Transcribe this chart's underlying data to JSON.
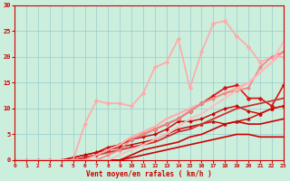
{
  "background_color": "#cceedd",
  "grid_color": "#99cccc",
  "xlabel": "Vent moyen/en rafales ( km/h )",
  "xlabel_color": "#cc0000",
  "tick_color": "#cc0000",
  "xlim": [
    0,
    23
  ],
  "ylim": [
    0,
    30
  ],
  "xticks": [
    0,
    1,
    2,
    3,
    4,
    5,
    6,
    7,
    8,
    9,
    10,
    11,
    12,
    13,
    14,
    15,
    16,
    17,
    18,
    19,
    20,
    21,
    22,
    23
  ],
  "yticks": [
    0,
    5,
    10,
    15,
    20,
    25,
    30
  ],
  "series": [
    {
      "x": [
        0,
        1,
        2,
        3,
        4,
        5,
        6,
        7,
        8,
        9,
        10,
        11,
        12,
        13,
        14,
        15,
        16,
        17,
        18,
        19,
        20,
        21,
        22,
        23
      ],
      "y": [
        0,
        0,
        0,
        0,
        0,
        0,
        0,
        0,
        0,
        0,
        0.5,
        1,
        1.5,
        2,
        2.5,
        3,
        3.5,
        4,
        4.5,
        5,
        5,
        4.5,
        4.5,
        4.5
      ],
      "color": "#cc0000",
      "marker": null,
      "markersize": 0,
      "linewidth": 1.2
    },
    {
      "x": [
        0,
        1,
        2,
        3,
        4,
        5,
        6,
        7,
        8,
        9,
        10,
        11,
        12,
        13,
        14,
        15,
        16,
        17,
        18,
        19,
        20,
        21,
        22,
        23
      ],
      "y": [
        0,
        0,
        0,
        0,
        0,
        0,
        0,
        0,
        0,
        0,
        1,
        2,
        2.5,
        3,
        3.5,
        4.5,
        5,
        6,
        7,
        7.5,
        7,
        7,
        7.5,
        8
      ],
      "color": "#cc0000",
      "marker": null,
      "markersize": 0,
      "linewidth": 1.2
    },
    {
      "x": [
        0,
        1,
        2,
        3,
        4,
        5,
        6,
        7,
        8,
        9,
        10,
        11,
        12,
        13,
        14,
        15,
        16,
        17,
        18,
        19,
        20,
        21,
        22,
        23
      ],
      "y": [
        0,
        0,
        0,
        0,
        0,
        0.5,
        1,
        1.5,
        2,
        2.5,
        3,
        3.5,
        4,
        5,
        6,
        6.5,
        7,
        7.5,
        7,
        7.5,
        8,
        9,
        10,
        10.5
      ],
      "color": "#cc0000",
      "marker": "^",
      "markersize": 2.5,
      "linewidth": 1.0
    },
    {
      "x": [
        0,
        1,
        2,
        3,
        4,
        5,
        6,
        7,
        8,
        9,
        10,
        11,
        12,
        13,
        14,
        15,
        16,
        17,
        18,
        19,
        20,
        21,
        22,
        23
      ],
      "y": [
        0,
        0,
        0,
        0,
        0,
        0.5,
        1,
        1.5,
        2.5,
        3,
        4,
        4.5,
        5,
        6,
        7.5,
        7.5,
        8,
        9,
        10,
        10.5,
        9.5,
        9,
        10,
        10.5
      ],
      "color": "#cc0000",
      "marker": "D",
      "markersize": 2.0,
      "linewidth": 1.0
    },
    {
      "x": [
        0,
        1,
        2,
        3,
        4,
        5,
        6,
        7,
        8,
        9,
        10,
        11,
        12,
        13,
        14,
        15,
        16,
        17,
        18,
        19,
        20,
        21,
        22,
        23
      ],
      "y": [
        0,
        0,
        0,
        0,
        0,
        0,
        0.5,
        1,
        2,
        3,
        4,
        5,
        6,
        7,
        8,
        9.5,
        11,
        12.5,
        14,
        14.5,
        12,
        12,
        10.5,
        14.5
      ],
      "color": "#dd1111",
      "marker": "D",
      "markersize": 2.5,
      "linewidth": 1.2
    },
    {
      "x": [
        0,
        1,
        2,
        3,
        4,
        5,
        6,
        7,
        8,
        9,
        10,
        11,
        12,
        13,
        14,
        15,
        16,
        17,
        18,
        19,
        20,
        21,
        22,
        23
      ],
      "y": [
        0,
        0,
        0,
        0,
        0,
        0,
        0.5,
        1,
        1.5,
        2,
        2.5,
        3,
        3.5,
        4.5,
        5.5,
        6,
        7,
        8,
        9,
        10,
        10.5,
        11,
        11.5,
        12
      ],
      "color": "#cc3333",
      "marker": null,
      "markersize": 0,
      "linewidth": 1.3
    },
    {
      "x": [
        0,
        1,
        2,
        3,
        4,
        5,
        6,
        7,
        8,
        9,
        10,
        11,
        12,
        13,
        14,
        15,
        16,
        17,
        18,
        19,
        20,
        21,
        22,
        23
      ],
      "y": [
        0,
        0,
        0,
        0,
        0,
        0,
        7,
        11.5,
        11,
        11,
        10.5,
        13,
        18,
        19,
        23.5,
        14,
        21,
        26.5,
        27,
        24,
        22,
        19,
        20,
        20
      ],
      "color": "#ffaaaa",
      "marker": "D",
      "markersize": 2.5,
      "linewidth": 1.2
    },
    {
      "x": [
        0,
        1,
        2,
        3,
        4,
        5,
        6,
        7,
        8,
        9,
        10,
        11,
        12,
        13,
        14,
        15,
        16,
        17,
        18,
        19,
        20,
        21,
        22,
        23
      ],
      "y": [
        0,
        0,
        0,
        0,
        0,
        0,
        0,
        1,
        2,
        3,
        4.5,
        5.5,
        6.5,
        8,
        9,
        10,
        11,
        12,
        13,
        14,
        15,
        17,
        19,
        21
      ],
      "color": "#ffaaaa",
      "marker": null,
      "markersize": 0,
      "linewidth": 1.5
    },
    {
      "x": [
        0,
        1,
        2,
        3,
        4,
        5,
        6,
        7,
        8,
        9,
        10,
        11,
        12,
        13,
        14,
        15,
        16,
        17,
        18,
        19,
        20,
        21,
        22,
        23
      ],
      "y": [
        0,
        0,
        0,
        0,
        0,
        0,
        0,
        0,
        1,
        2,
        4,
        5,
        6,
        7,
        8,
        9.5,
        11,
        12,
        13,
        13.5,
        14,
        18,
        20,
        21
      ],
      "color": "#ee8888",
      "marker": "o",
      "markersize": 2.5,
      "linewidth": 1.2
    },
    {
      "x": [
        0,
        1,
        2,
        3,
        4,
        5,
        6,
        7,
        8,
        9,
        10,
        11,
        12,
        13,
        14,
        15,
        16,
        17,
        18,
        19,
        20,
        21,
        22,
        23
      ],
      "y": [
        0,
        0,
        0,
        0,
        0,
        0,
        0,
        0,
        0,
        1,
        2,
        3,
        4,
        5,
        6.5,
        8,
        9,
        10.5,
        12,
        13.5,
        15,
        17,
        19,
        23
      ],
      "color": "#ffbbbb",
      "marker": null,
      "markersize": 0,
      "linewidth": 1.3
    }
  ]
}
